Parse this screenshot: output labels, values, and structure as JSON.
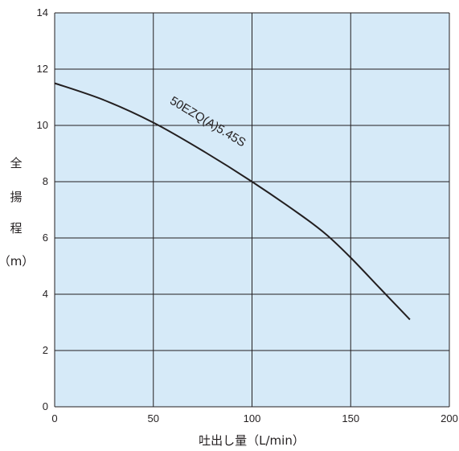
{
  "chart_data": {
    "type": "line",
    "xlabel": "吐出し量（L/min）",
    "ylabel_chars": [
      "全",
      "揚",
      "程"
    ],
    "ylabel_unit": "（m）",
    "xlim": [
      0,
      200
    ],
    "ylim": [
      0,
      14
    ],
    "x_ticks": [
      "0",
      "50",
      "100",
      "150",
      "200"
    ],
    "y_ticks": [
      "0",
      "2",
      "4",
      "6",
      "8",
      "10",
      "12",
      "14"
    ],
    "grid": true,
    "colors": {
      "plot_bg": "#d6eaf8",
      "grid": "#231f20",
      "line": "#231f20"
    },
    "series": [
      {
        "name": "50EZQ(A)5.45S",
        "x": [
          0,
          25,
          50,
          75,
          100,
          125,
          138,
          150,
          165,
          180
        ],
        "y": [
          11.5,
          10.9,
          10.1,
          9.1,
          8.0,
          6.8,
          6.1,
          5.3,
          4.2,
          3.1
        ]
      }
    ]
  }
}
